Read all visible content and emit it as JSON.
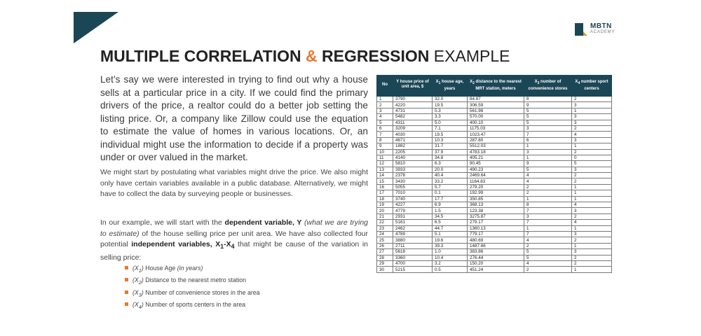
{
  "brand": {
    "name": "MBTN",
    "sub": "ACADEMY"
  },
  "title": {
    "bold1": "MULTIPLE CORRELATION",
    "amp": "&",
    "bold2": "REGRESSION",
    "light": "EXAMPLE"
  },
  "intro": "Let’s say we were interested in trying to find out why a house sells at a particular price in a city. If we could find the primary drivers of the price, a realtor could do a better job setting the listing price. Or, a company like Zillow could use the equation to estimate the value of homes in various locations. Or, an individual might use the information to decide if a property was under or over valued in the market.",
  "para1": "We might start by postulating what variables might drive the price. We also might only have certain variables available in a public database. Alternatively, we might have to collect the data by surveying people or businesses.",
  "para2": {
    "t1": "In our example, we will start with the ",
    "b1": "dependent variable, Y",
    "i1": " (what we are trying to estimate)",
    "t2": " of the house selling price per unit area. We have also collected four potential ",
    "b2": "independent variables, X",
    "sub1": "1",
    "b3": "-X",
    "sub2": "4",
    "t3": " that might be cause of the variation in selling price:"
  },
  "bullets": [
    {
      "var": "(X",
      "sub": "1",
      "close": ")",
      "text": " House Age ",
      "note": "(in years)"
    },
    {
      "var": "(X",
      "sub": "2",
      "close": ")",
      "text": " Distance to the nearest metro station",
      "note": ""
    },
    {
      "var": "(X",
      "sub": "3",
      "close": ")",
      "text": " Number of convenience stores in the area",
      "note": ""
    },
    {
      "var": "(X",
      "sub": "4",
      "close": ")",
      "text": " Number of sports centers in the area",
      "note": ""
    }
  ],
  "table": {
    "headers": [
      {
        "pre": "No",
        "sub": "",
        "post": ""
      },
      {
        "pre": "Y house price of unit area, $",
        "sub": "",
        "post": ""
      },
      {
        "pre": "X",
        "sub": "1",
        "post": " house age, years"
      },
      {
        "pre": "X",
        "sub": "2",
        "post": " distance to the nearest MRT station, meters"
      },
      {
        "pre": "X",
        "sub": "3",
        "post": " number of convenience stores"
      },
      {
        "pre": "X",
        "sub": "4",
        "post": " number sport centers"
      }
    ],
    "rows": [
      [
        "1",
        "3790",
        "32.0",
        "84.87",
        "8",
        "2"
      ],
      [
        "2",
        "4220",
        "19.5",
        "306.59",
        "9",
        "3"
      ],
      [
        "3",
        "4731",
        "5.3",
        "561.98",
        "5",
        "1"
      ],
      [
        "4",
        "5482",
        "3.3",
        "570.00",
        "5",
        "3"
      ],
      [
        "5",
        "4311",
        "5.0",
        "400.10",
        "5",
        "3"
      ],
      [
        "6",
        "3209",
        "7.1",
        "1175.03",
        "3",
        "2"
      ],
      [
        "7",
        "4030",
        "19.5",
        "1023.47",
        "7",
        "4"
      ],
      [
        "8",
        "4671",
        "10.3",
        "287.60",
        "6",
        "3"
      ],
      [
        "9",
        "1882",
        "31.7",
        "5512.03",
        "1",
        "1"
      ],
      [
        "10",
        "2205",
        "37.9",
        "4783.18",
        "3",
        "2"
      ],
      [
        "11",
        "4140",
        "34.8",
        "405.21",
        "1",
        "0"
      ],
      [
        "12",
        "5810",
        "6.3",
        "90.45",
        "9",
        "5"
      ],
      [
        "13",
        "3933",
        "20.0",
        "490.23",
        "5",
        "3"
      ],
      [
        "14",
        "2378",
        "40.4",
        "2469.64",
        "4",
        "2"
      ],
      [
        "15",
        "3430",
        "33.2",
        "1164.83",
        "4",
        "2"
      ],
      [
        "16",
        "5055",
        "5.7",
        "279.20",
        "2",
        "1"
      ],
      [
        "17",
        "7010",
        "0.1",
        "192.99",
        "2",
        "1"
      ],
      [
        "18",
        "3740",
        "17.7",
        "350.85",
        "1",
        "1"
      ],
      [
        "19",
        "4227",
        "6.9",
        "368.13",
        "8",
        "4"
      ],
      [
        "20",
        "4779",
        "1.5",
        "123.38",
        "7",
        "3"
      ],
      [
        "21",
        "2931",
        "34.5",
        "3275.87",
        "3",
        "2"
      ],
      [
        "22",
        "5161",
        "6.5",
        "279.17",
        "7",
        "4"
      ],
      [
        "23",
        "2462",
        "44.7",
        "1360.13",
        "1",
        "1"
      ],
      [
        "24",
        "4789",
        "5.1",
        "779.17",
        "7",
        "3"
      ],
      [
        "25",
        "3880",
        "19.6",
        "480.69",
        "4",
        "2"
      ],
      [
        "26",
        "2711",
        "39.3",
        "1487.86",
        "2",
        "1"
      ],
      [
        "27",
        "5618",
        "1.0",
        "383.86",
        "5",
        "3"
      ],
      [
        "28",
        "3360",
        "10.4",
        "276.44",
        "5",
        "2"
      ],
      [
        "29",
        "4700",
        "3.2",
        "150.20",
        "4",
        "2"
      ],
      [
        "30",
        "5215",
        "0.5",
        "451.24",
        "2",
        "1"
      ]
    ]
  },
  "colors": {
    "navy": "#1b4656",
    "accent": "#e8772e",
    "gold": "#c9a227"
  }
}
